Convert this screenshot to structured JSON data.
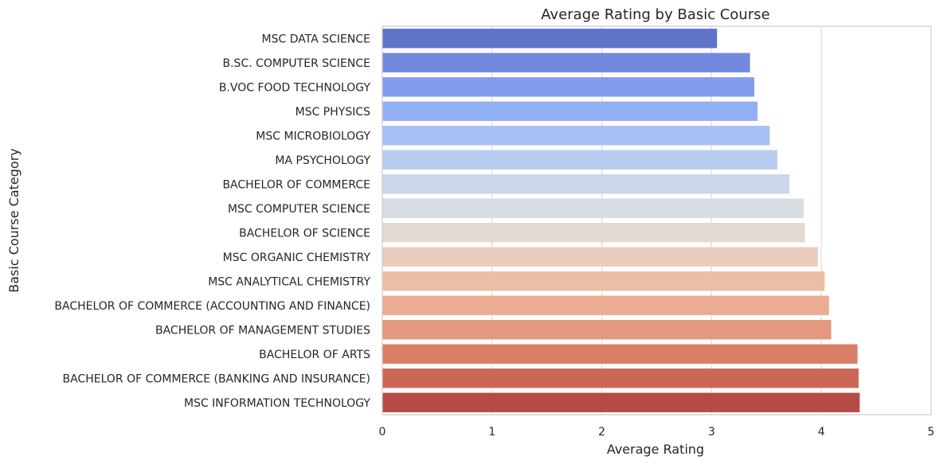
{
  "chart_data": {
    "type": "bar",
    "orientation": "horizontal",
    "title": "Average Rating by Basic Course",
    "xlabel": "Average Rating",
    "ylabel": "Basic Course Category",
    "xlim": [
      0,
      5
    ],
    "xticks": [
      "0",
      "1",
      "2",
      "3",
      "4",
      "5"
    ],
    "grid": "vertical",
    "categories": [
      "MSC DATA SCIENCE",
      "B.SC. COMPUTER SCIENCE",
      "B.VOC FOOD TECHNOLOGY",
      "MSC PHYSICS",
      "MSC MICROBIOLOGY",
      "MA PSYCHOLOGY",
      "BACHELOR OF COMMERCE",
      "MSC COMPUTER SCIENCE",
      "BACHELOR OF SCIENCE",
      "MSC ORGANIC CHEMISTRY",
      "MSC ANALYTICAL CHEMISTRY",
      "BACHELOR OF COMMERCE (ACCOUNTING AND FINANCE)",
      "BACHELOR OF MANAGEMENT STUDIES",
      "BACHELOR OF ARTS",
      "BACHELOR OF COMMERCE (BANKING AND INSURANCE)",
      "MSC INFORMATION TECHNOLOGY"
    ],
    "values": [
      3.05,
      3.35,
      3.39,
      3.42,
      3.53,
      3.6,
      3.71,
      3.84,
      3.85,
      3.97,
      4.03,
      4.07,
      4.09,
      4.33,
      4.34,
      4.35
    ],
    "colors": [
      "#5f74c8",
      "#7189df",
      "#829ded",
      "#94b0f5",
      "#a7c0f6",
      "#b9cdf2",
      "#c9d6ec",
      "#d7dbe4",
      "#e4d8d2",
      "#ebcdbf",
      "#ecbea6",
      "#eaac92",
      "#e3987f",
      "#d97f67",
      "#cb6756",
      "#b64a45"
    ]
  }
}
